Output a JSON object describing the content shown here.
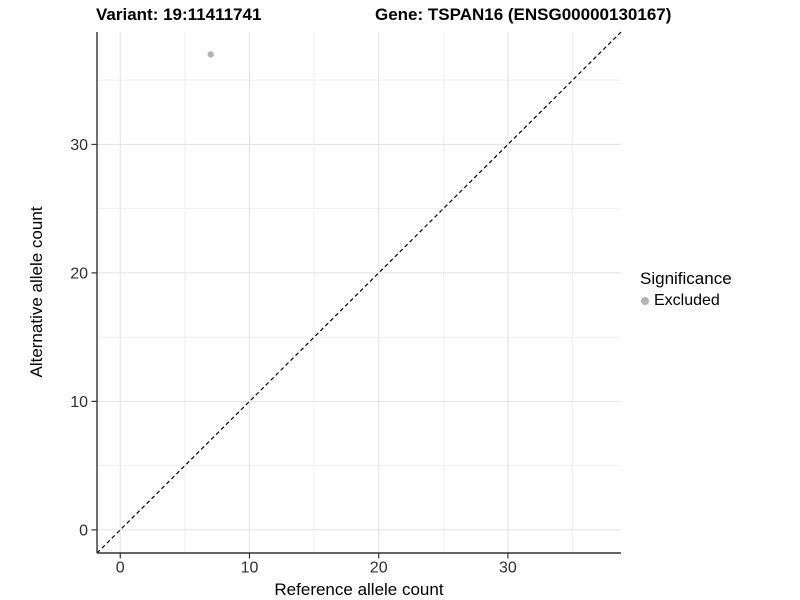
{
  "chart_data": {
    "type": "scatter",
    "title_left": "Variant: 19:11411741",
    "title_right": "Gene: TSPAN16 (ENSG00000130167)",
    "xlabel": "Reference allele count",
    "ylabel": "Alternative allele count",
    "xlim": [
      -1.8,
      38.75
    ],
    "ylim": [
      -1.8,
      38.75
    ],
    "x_ticks": [
      0,
      10,
      20,
      30
    ],
    "y_ticks": [
      0,
      10,
      20,
      30
    ],
    "x_minor_ticks": [
      5,
      15,
      25,
      35
    ],
    "y_minor_ticks": [
      5,
      15,
      25,
      35
    ],
    "grid": "major+minor",
    "reference_line": {
      "kind": "identity y=x",
      "style": "dashed",
      "color": "#000000"
    },
    "series": [
      {
        "name": "Excluded",
        "color": "#b3b3b3",
        "points": [
          {
            "x": 7,
            "y": 37
          }
        ]
      }
    ],
    "legend": {
      "title": "Significance",
      "position": "right",
      "items": [
        {
          "label": "Excluded",
          "color": "#b3b3b3",
          "marker": "circle"
        }
      ]
    }
  },
  "colors": {
    "background": "#ffffff",
    "grid_major": "#e2e2e2",
    "grid_minor": "#efefef",
    "axis_line": "#333333",
    "tick_mark": "#333333",
    "tick_label": "#303030",
    "title_text": "#000000"
  }
}
